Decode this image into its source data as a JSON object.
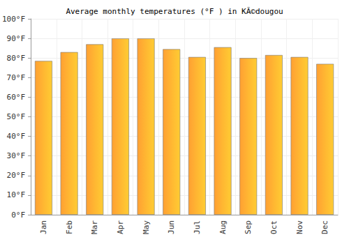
{
  "chart_data": {
    "type": "bar",
    "title": "Average monthly temperatures (°F ) in KÃ©dougou",
    "categories": [
      "Jan",
      "Feb",
      "Mar",
      "Apr",
      "May",
      "Jun",
      "Jul",
      "Aug",
      "Sep",
      "Oct",
      "Nov",
      "Dec"
    ],
    "values": [
      78.5,
      83,
      87,
      90,
      90,
      84.5,
      80.5,
      85.5,
      80,
      81.5,
      80.5,
      77
    ],
    "color": "#ffb732",
    "ylim": [
      0,
      100
    ],
    "yticks": [
      {
        "value": 0,
        "label": "0°F"
      },
      {
        "value": 10,
        "label": "10°F"
      },
      {
        "value": 20,
        "label": "20°F"
      },
      {
        "value": 30,
        "label": "30°F"
      },
      {
        "value": 40,
        "label": "40°F"
      },
      {
        "value": 50,
        "label": "50°F"
      },
      {
        "value": 60,
        "label": "60°F"
      },
      {
        "value": 70,
        "label": "70°F"
      },
      {
        "value": 80,
        "label": "80°F"
      },
      {
        "value": 90,
        "label": "90°F"
      },
      {
        "value": 100,
        "label": "100°F"
      }
    ],
    "grid": true
  }
}
